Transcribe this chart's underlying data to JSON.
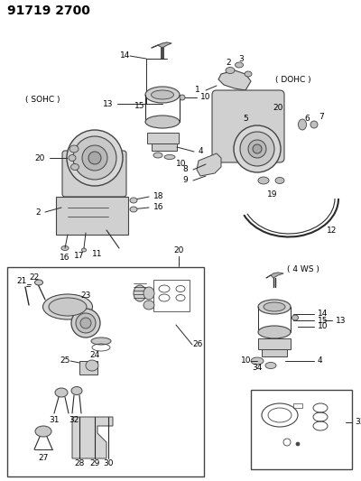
{
  "title": "91719 2700",
  "bg_color": "#ffffff",
  "labels": {
    "sohc": "( SOHC )",
    "dohc": "( DOHC )",
    "four_ws": "( 4 WS )"
  },
  "figsize": [
    4.0,
    5.33
  ],
  "dpi": 100,
  "line_color": "#2a2a2a",
  "text_color": "#000000",
  "part_fill": "#e8e8e8",
  "part_edge": "#444444"
}
